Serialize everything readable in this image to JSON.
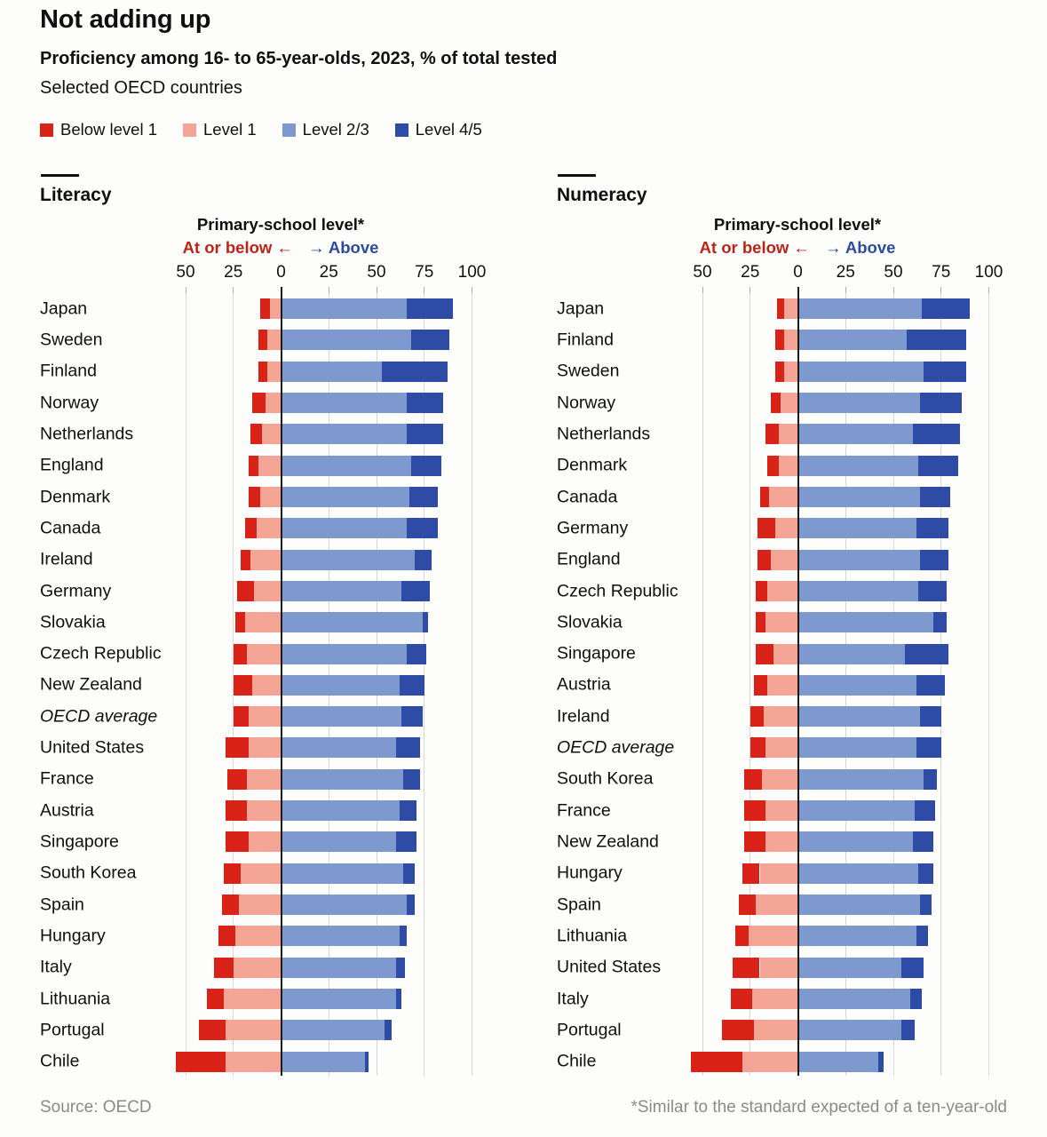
{
  "header": {
    "title": "Not adding up",
    "subtitle": "Proficiency among 16- to 65-year-olds, 2023, % of total tested",
    "note": "Selected OECD countries"
  },
  "legend": {
    "items": [
      {
        "label": "Below level 1",
        "color": "#da2318"
      },
      {
        "label": "Level 1",
        "color": "#f4a595"
      },
      {
        "label": "Level 2/3",
        "color": "#7e99ce"
      },
      {
        "label": "Level 4/5",
        "color": "#2e4ca5"
      }
    ]
  },
  "axis": {
    "header_label": "Primary-school level*",
    "left_direction_label": "At or below ←",
    "right_direction_label": "→ Above",
    "tick_labels": [
      "50",
      "25",
      "0",
      "25",
      "50",
      "75",
      "100"
    ],
    "tick_values": [
      -50,
      -25,
      0,
      25,
      50,
      75,
      100
    ],
    "range": [
      -50,
      100
    ],
    "unit": "%"
  },
  "colors": {
    "accent_red_text": "#bf2318",
    "accent_blue_text": "#2a4c9f",
    "gridline": "#d7d7d3",
    "axis_line": "#1a1a1a",
    "muted_text": "#8a8a8a",
    "background": "#fdfdfb"
  },
  "footer": {
    "source": "Source: OECD",
    "footnote": "*Similar to the standard expected of a ten-year-old"
  },
  "chart_data": [
    {
      "type": "bar",
      "variant": "diverging-stacked-horizontal",
      "panel": "Literacy",
      "series_labels": [
        "Below level 1",
        "Level 1",
        "Level 2/3",
        "Level 4/5"
      ],
      "note": "values are % of total tested; negative side = at or below primary-school level",
      "countries": [
        {
          "name": "Japan",
          "values": [
            5,
            6,
            66,
            24
          ]
        },
        {
          "name": "Sweden",
          "values": [
            5,
            7,
            68,
            20
          ]
        },
        {
          "name": "Finland",
          "values": [
            5,
            7,
            53,
            34
          ]
        },
        {
          "name": "Norway",
          "values": [
            7,
            8,
            66,
            19
          ]
        },
        {
          "name": "Netherlands",
          "values": [
            6,
            10,
            66,
            19
          ]
        },
        {
          "name": "England",
          "values": [
            5,
            12,
            68,
            16
          ]
        },
        {
          "name": "Denmark",
          "values": [
            6,
            11,
            67,
            15
          ]
        },
        {
          "name": "Canada",
          "values": [
            6,
            13,
            66,
            16
          ]
        },
        {
          "name": "Ireland",
          "values": [
            5,
            16,
            70,
            9
          ]
        },
        {
          "name": "Germany",
          "values": [
            9,
            14,
            63,
            15
          ]
        },
        {
          "name": "Slovakia",
          "values": [
            5,
            19,
            74,
            3
          ]
        },
        {
          "name": "Czech Republic",
          "values": [
            7,
            18,
            66,
            10
          ]
        },
        {
          "name": "New Zealand",
          "values": [
            10,
            15,
            62,
            13
          ]
        },
        {
          "name": "OECD average",
          "values": [
            8,
            17,
            63,
            11
          ],
          "italic": true
        },
        {
          "name": "United States",
          "values": [
            12,
            17,
            60,
            13
          ]
        },
        {
          "name": "France",
          "values": [
            10,
            18,
            64,
            9
          ]
        },
        {
          "name": "Austria",
          "values": [
            11,
            18,
            62,
            9
          ]
        },
        {
          "name": "Singapore",
          "values": [
            12,
            17,
            60,
            11
          ]
        },
        {
          "name": "South Korea",
          "values": [
            9,
            21,
            64,
            6
          ]
        },
        {
          "name": "Spain",
          "values": [
            9,
            22,
            66,
            4
          ]
        },
        {
          "name": "Hungary",
          "values": [
            9,
            24,
            62,
            4
          ]
        },
        {
          "name": "Italy",
          "values": [
            10,
            25,
            60,
            5
          ]
        },
        {
          "name": "Lithuania",
          "values": [
            9,
            30,
            60,
            3
          ]
        },
        {
          "name": "Portugal",
          "values": [
            14,
            29,
            54,
            4
          ]
        },
        {
          "name": "Chile",
          "values": [
            26,
            29,
            44,
            2
          ]
        }
      ]
    },
    {
      "type": "bar",
      "variant": "diverging-stacked-horizontal",
      "panel": "Numeracy",
      "series_labels": [
        "Below level 1",
        "Level 1",
        "Level 2/3",
        "Level 4/5"
      ],
      "note": "values are % of total tested; negative side = at or below primary-school level",
      "countries": [
        {
          "name": "Japan",
          "values": [
            4,
            7,
            65,
            25
          ]
        },
        {
          "name": "Finland",
          "values": [
            5,
            7,
            57,
            31
          ]
        },
        {
          "name": "Sweden",
          "values": [
            5,
            7,
            66,
            22
          ]
        },
        {
          "name": "Norway",
          "values": [
            5,
            9,
            64,
            22
          ]
        },
        {
          "name": "Netherlands",
          "values": [
            7,
            10,
            60,
            25
          ]
        },
        {
          "name": "Denmark",
          "values": [
            6,
            10,
            63,
            21
          ]
        },
        {
          "name": "Canada",
          "values": [
            5,
            15,
            64,
            16
          ]
        },
        {
          "name": "Germany",
          "values": [
            9,
            12,
            62,
            17
          ]
        },
        {
          "name": "England",
          "values": [
            7,
            14,
            64,
            15
          ]
        },
        {
          "name": "Czech Republic",
          "values": [
            6,
            16,
            63,
            15
          ]
        },
        {
          "name": "Slovakia",
          "values": [
            5,
            17,
            71,
            7
          ]
        },
        {
          "name": "Singapore",
          "values": [
            9,
            13,
            56,
            23
          ]
        },
        {
          "name": "Austria",
          "values": [
            7,
            16,
            62,
            15
          ]
        },
        {
          "name": "Ireland",
          "values": [
            7,
            18,
            64,
            11
          ]
        },
        {
          "name": "OECD average",
          "values": [
            8,
            17,
            62,
            13
          ],
          "italic": true
        },
        {
          "name": "South Korea",
          "values": [
            9,
            19,
            66,
            7
          ]
        },
        {
          "name": "France",
          "values": [
            11,
            17,
            61,
            11
          ]
        },
        {
          "name": "New Zealand",
          "values": [
            11,
            17,
            60,
            11
          ]
        },
        {
          "name": "Hungary",
          "values": [
            9,
            20,
            63,
            8
          ]
        },
        {
          "name": "Spain",
          "values": [
            9,
            22,
            64,
            6
          ]
        },
        {
          "name": "Lithuania",
          "values": [
            7,
            26,
            62,
            6
          ]
        },
        {
          "name": "United States",
          "values": [
            14,
            20,
            54,
            12
          ]
        },
        {
          "name": "Italy",
          "values": [
            11,
            24,
            59,
            6
          ]
        },
        {
          "name": "Portugal",
          "values": [
            17,
            23,
            54,
            7
          ]
        },
        {
          "name": "Chile",
          "values": [
            27,
            29,
            42,
            3
          ]
        }
      ]
    }
  ]
}
